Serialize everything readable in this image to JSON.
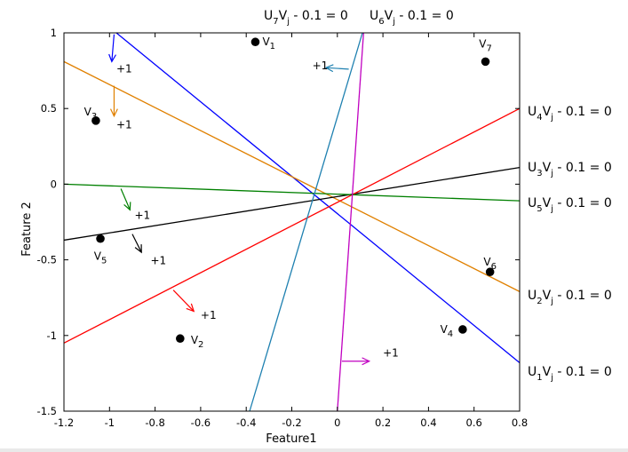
{
  "chart_data": {
    "type": "line",
    "title": "",
    "xlabel": "Feature1",
    "ylabel": "Feature 2",
    "xlim": [
      -1.2,
      0.8
    ],
    "ylim": [
      -1.5,
      1
    ],
    "xticks": [
      "-1.2",
      "-1",
      "-0.8",
      "-0.6",
      "-0.4",
      "-0.2",
      "0",
      "0.2",
      "0.4",
      "0.6",
      "0.8"
    ],
    "yticks": [
      "-1.5",
      "-1",
      "-0.5",
      "0",
      "0.5",
      "1"
    ],
    "grid": false,
    "points": [
      {
        "label": "V",
        "sub": "1",
        "x": -0.36,
        "y": 0.94
      },
      {
        "label": "V",
        "sub": "2",
        "x": -0.69,
        "y": -1.02
      },
      {
        "label": "V",
        "sub": "3",
        "x": -1.06,
        "y": 0.42
      },
      {
        "label": "V",
        "sub": "4",
        "x": 0.55,
        "y": -0.96
      },
      {
        "label": "V",
        "sub": "5",
        "x": -1.04,
        "y": -0.36
      },
      {
        "label": "V",
        "sub": "6",
        "x": 0.67,
        "y": -0.58
      },
      {
        "label": "V",
        "sub": "7",
        "x": 0.65,
        "y": 0.81
      }
    ],
    "lines": [
      {
        "name_main": "U",
        "name_sub": "1",
        "name_mid": "V",
        "name_mid_sub": "j",
        "name_rest": " - 0.1 = 0",
        "color": "#0000ff",
        "x": [
          -0.97,
          0.8
        ],
        "y": [
          1.0,
          -1.18
        ],
        "arrow_x": [
          -0.98,
          -0.99
        ],
        "arrow_y": [
          0.99,
          0.81
        ]
      },
      {
        "name_main": "U",
        "name_sub": "2",
        "name_mid": "V",
        "name_mid_sub": "j",
        "name_rest": " - 0.1 = 0",
        "color": "#e08000",
        "x": [
          -1.2,
          0.8
        ],
        "y": [
          0.81,
          -0.71
        ],
        "arrow_x": [
          -0.98,
          -0.98
        ],
        "arrow_y": [
          0.65,
          0.45
        ]
      },
      {
        "name_main": "U",
        "name_sub": "3",
        "name_mid": "V",
        "name_mid_sub": "j",
        "name_rest": " - 0.1 = 0",
        "color": "#000000",
        "x": [
          -1.2,
          0.8
        ],
        "y": [
          -0.37,
          0.11
        ],
        "arrow_x": [
          -0.9,
          -0.86
        ],
        "arrow_y": [
          -0.33,
          -0.45
        ]
      },
      {
        "name_main": "U",
        "name_sub": "4",
        "name_mid": "V",
        "name_mid_sub": "j",
        "name_rest": " - 0.1 = 0",
        "color": "#ff0000",
        "x": [
          -1.2,
          0.8
        ],
        "y": [
          -1.05,
          0.5
        ],
        "arrow_x": [
          -0.72,
          -0.63
        ],
        "arrow_y": [
          -0.7,
          -0.84
        ]
      },
      {
        "name_main": "U",
        "name_sub": "5",
        "name_mid": "V",
        "name_mid_sub": "j",
        "name_rest": " - 0.1 = 0",
        "color": "#008000",
        "x": [
          -1.2,
          0.8
        ],
        "y": [
          0.0,
          -0.11
        ],
        "arrow_x": [
          -0.95,
          -0.91
        ],
        "arrow_y": [
          -0.03,
          -0.17
        ]
      },
      {
        "name_main": "U",
        "name_sub": "6",
        "name_mid": "V",
        "name_mid_sub": "j",
        "name_rest": " - 0.1 = 0",
        "color": "#c000c0",
        "x": [
          0.115,
          0.0
        ],
        "y": [
          1.0,
          -1.5
        ],
        "arrow_x": [
          0.02,
          0.14
        ],
        "arrow_y": [
          -1.17,
          -1.17
        ]
      },
      {
        "name_main": "U",
        "name_sub": "7",
        "name_mid": "V",
        "name_mid_sub": "j",
        "name_rest": " - 0.1 = 0",
        "color": "#1e80b0",
        "x": [
          0.11,
          -0.385
        ],
        "y": [
          1.0,
          -1.5
        ],
        "arrow_x": [
          0.05,
          -0.05
        ],
        "arrow_y": [
          0.76,
          0.77
        ]
      }
    ],
    "plus_labels": [
      {
        "text": "+1",
        "x": -0.97,
        "y": 0.74
      },
      {
        "text": "+1",
        "x": -0.97,
        "y": 0.37
      },
      {
        "text": "+1",
        "x": -0.89,
        "y": -0.23
      },
      {
        "text": "+1",
        "x": -0.82,
        "y": -0.53
      },
      {
        "text": "+1",
        "x": -0.6,
        "y": -0.89
      },
      {
        "text": "+1",
        "x": 0.2,
        "y": -1.14
      },
      {
        "text": "+1",
        "x": -0.11,
        "y": 0.76
      }
    ]
  }
}
